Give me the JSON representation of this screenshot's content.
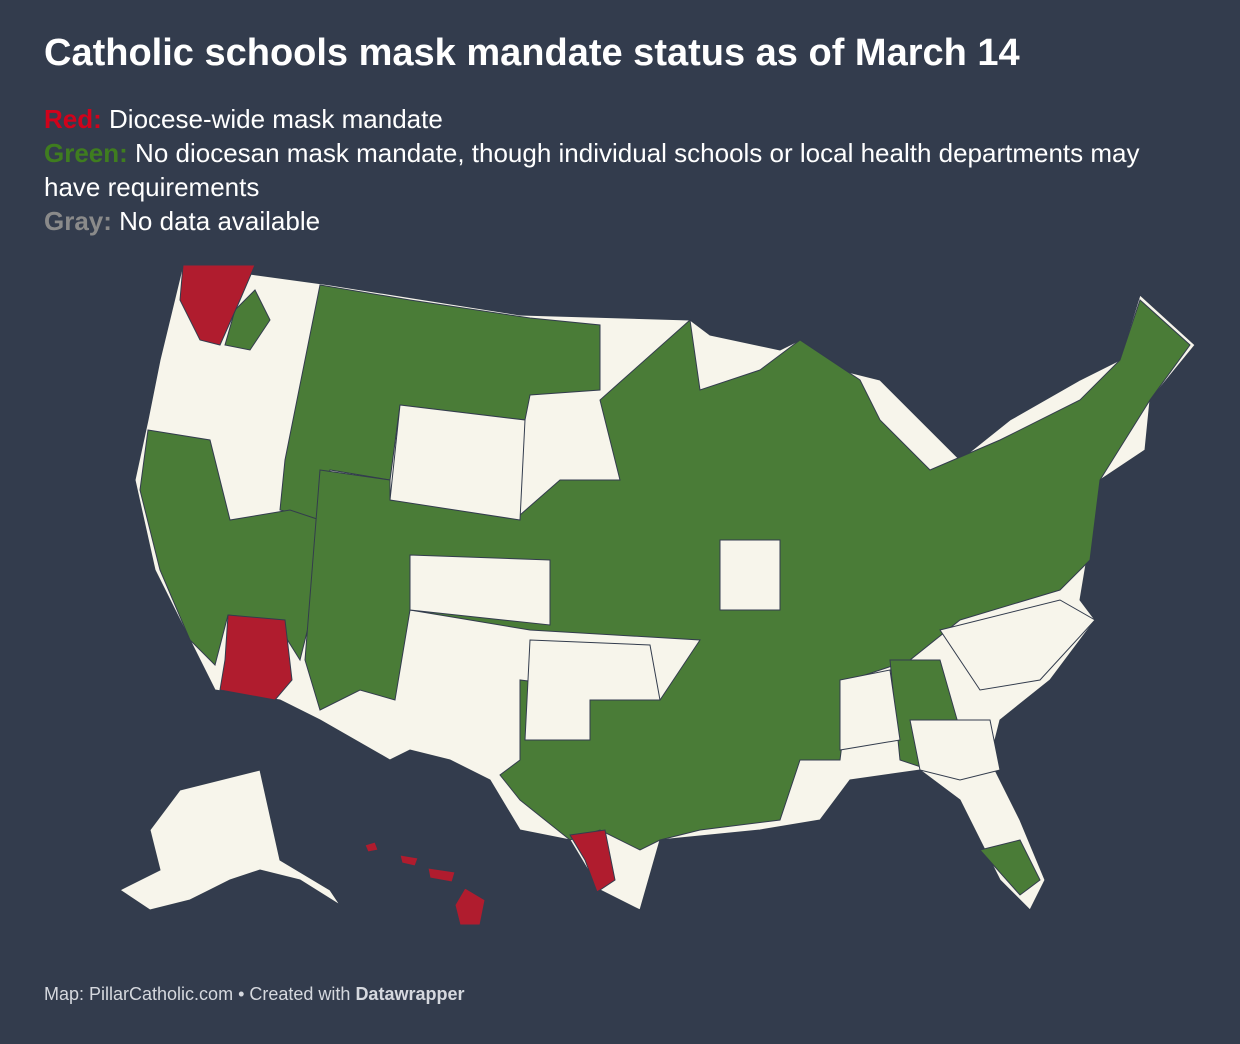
{
  "header": {
    "title": "Catholic schools mask mandate status as of March 14"
  },
  "legend": [
    {
      "key": "Red:",
      "color": "#d0021b",
      "text": "Diocese-wide mask mandate"
    },
    {
      "key": "Green:",
      "color": "#3f7d1f",
      "text": "No diocesan mask mandate, though individual schools or local health departments may have requirements"
    },
    {
      "key": "Gray:",
      "color": "#8a8a8a",
      "text": "No data available"
    }
  ],
  "footer": {
    "source": "Map: PillarCatholic.com • Created with",
    "tool": "Datawrapper"
  }
}
